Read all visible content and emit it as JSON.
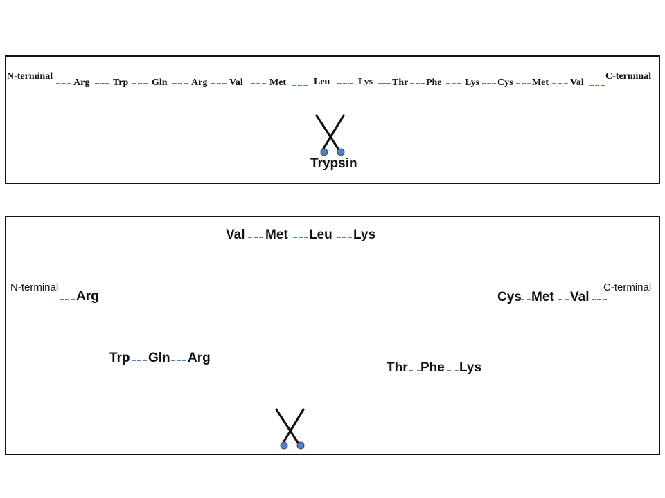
{
  "top_panel": {
    "n_terminal": "N-terminal",
    "c_terminal": "C-terminal",
    "residues": [
      "Arg",
      "Trp",
      "Gln",
      "Arg",
      "Val",
      "Met",
      "Leu",
      "Lys",
      "Thr",
      "Phe",
      "Lys",
      "Cys",
      "Met",
      "Val"
    ],
    "enzyme_label": "Trypsin"
  },
  "bottom_panel": {
    "fragment_1": {
      "n_terminal": "N-terminal",
      "residues": [
        "Arg"
      ]
    },
    "fragment_2": {
      "residues": [
        "Trp",
        "Gln",
        "Arg"
      ]
    },
    "fragment_3": {
      "residues": [
        "Val",
        "Met",
        "Leu",
        "Lys"
      ]
    },
    "fragment_4": {
      "residues": [
        "Thr",
        "Phe",
        "Lys"
      ]
    },
    "fragment_5": {
      "residues": [
        "Cys",
        "Met",
        "Val"
      ],
      "c_terminal": "C-terminal"
    }
  },
  "colors": {
    "bond": "#4f81bd",
    "scissor_handle": "#4f81bd",
    "text": "#111111",
    "border": "#111111"
  },
  "icons": [
    "scissors-icon"
  ]
}
